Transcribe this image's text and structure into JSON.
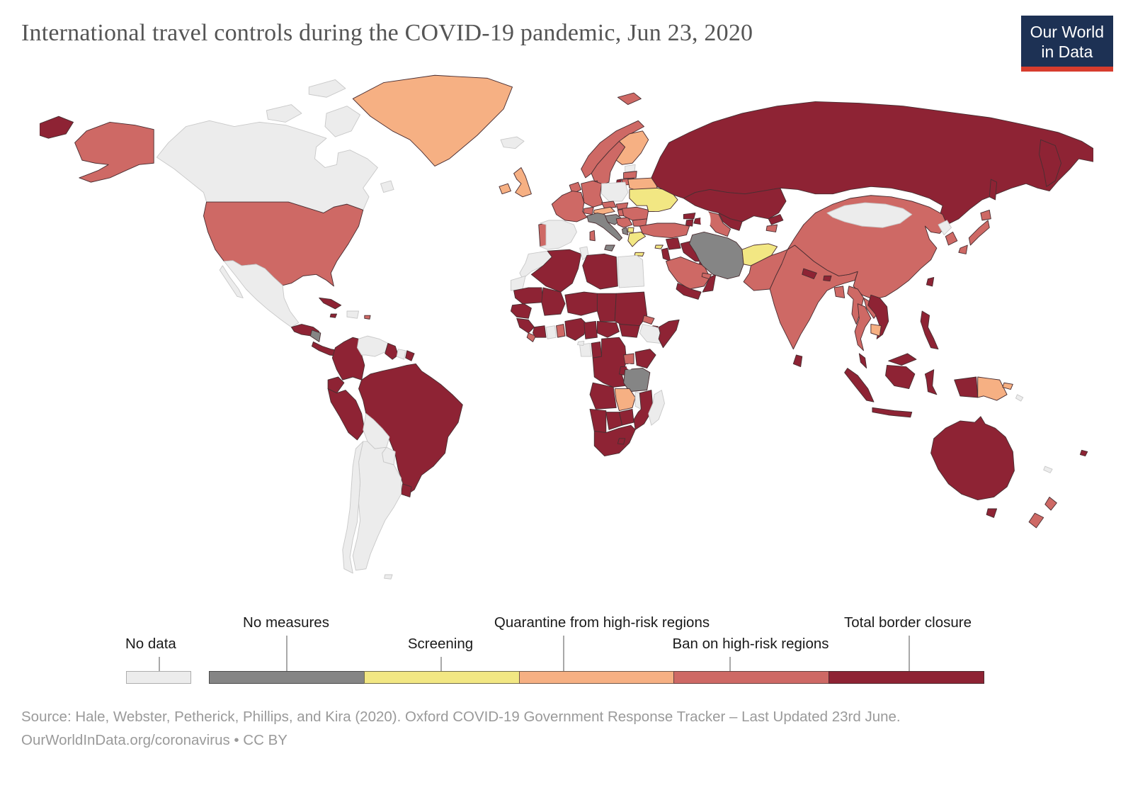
{
  "header": {
    "title": "International travel controls during the COVID-19 pandemic, Jun 23, 2020"
  },
  "logo": {
    "line1": "Our World",
    "line2": "in Data"
  },
  "colors": {
    "title_color": "#555555",
    "label_text": "#1a1a1a",
    "source_text": "#9a9a9a",
    "logo_bg": "#1d3154",
    "logo_stripe": "#d73c2d",
    "map_stroke": "#4a2e32",
    "map_stroke_nodata": "#c9c9c9",
    "water": "#ffffff"
  },
  "source": {
    "line1": "Source: Hale, Webster, Petherick, Phillips, and Kira (2020). Oxford COVID-19 Government Response Tracker – Last Updated 23rd June.",
    "link": "OurWorldInData.org/coronavirus",
    "suffix": " • CC BY"
  },
  "chart_data": {
    "type": "choropleth_map",
    "title": "International travel controls during the COVID-19 pandemic",
    "date": "Jun 23, 2020",
    "legend_position": "bottom",
    "categories": [
      {
        "label": "No data",
        "color": "#ececec"
      },
      {
        "label": "No measures",
        "color": "#858585"
      },
      {
        "label": "Screening",
        "color": "#f2e783"
      },
      {
        "label": "Quarantine from high-risk regions",
        "color": "#f6b083"
      },
      {
        "label": "Ban on high-risk regions",
        "color": "#ce6965"
      },
      {
        "label": "Total border closure",
        "color": "#8e2334"
      }
    ],
    "countries": {
      "Canada": "No data",
      "Mexico": "No data",
      "Iceland": "No data",
      "Venezuela": "No data",
      "Suriname": "No data",
      "Bolivia": "No data",
      "Paraguay": "No data",
      "Argentina": "No data",
      "Chile": "No data",
      "Falkland Islands": "No data",
      "Hispaniola": "No data",
      "Spain": "No data",
      "Poland": "No data",
      "Estonia": "No data",
      "Morocco": "No data",
      "Western Sahara": "No data",
      "Tunisia": "No data",
      "Egypt": "No data",
      "Ethiopia": "No data",
      "Ghana": "No data",
      "Gabon": "No data",
      "Equatorial Guinea": "No data",
      "Madagascar": "No data",
      "Malawi": "No data",
      "Mongolia": "No data",
      "North Korea": "No data",
      "Solomon Islands": "No data",
      "New Caledonia": "No data",
      "Italy": "No measures",
      "Croatia": "No measures",
      "Albania": "No measures",
      "Iran": "No measures",
      "Tanzania": "No measures",
      "Nicaragua": "No measures",
      "Ukraine": "Screening",
      "Greece": "Screening",
      "Afghanistan": "Screening",
      "North Macedonia": "Screening",
      "Cyprus": "Screening",
      "Greenland": "Quarantine from high-risk regions",
      "United Kingdom": "Quarantine from high-risk regions",
      "Ireland": "Quarantine from high-risk regions",
      "Finland": "Quarantine from high-risk regions",
      "Austria": "Quarantine from high-risk regions",
      "Belarus": "Quarantine from high-risk regions",
      "Zambia": "Quarantine from high-risk regions",
      "Cambodia": "Quarantine from high-risk regions",
      "Papua New Guinea": "Quarantine from high-risk regions",
      "United States": "Ban on high-risk regions",
      "Puerto Rico": "Ban on high-risk regions",
      "Norway": "Ban on high-risk regions",
      "Sweden": "Ban on high-risk regions",
      "Denmark": "Ban on high-risk regions",
      "Germany": "Ban on high-risk regions",
      "Netherlands": "Ban on high-risk regions",
      "France": "Ban on high-risk regions",
      "Portugal": "Ban on high-risk regions",
      "Czechia": "Ban on high-risk regions",
      "Slovakia": "Ban on high-risk regions",
      "Switzerland": "Ban on high-risk regions",
      "Hungary": "Ban on high-risk regions",
      "Serbia": "Ban on high-risk regions",
      "Bulgaria": "Ban on high-risk regions",
      "Romania": "Ban on high-risk regions",
      "Latvia": "Ban on high-risk regions",
      "Lithuania": "Ban on high-risk regions",
      "Turkey": "Ban on high-risk regions",
      "Saudi Arabia": "Ban on high-risk regions",
      "United Arab Emirates": "Ban on high-risk regions",
      "Turkmenistan": "Ban on high-risk regions",
      "Tajikistan": "Ban on high-risk regions",
      "Pakistan": "Ban on high-risk regions",
      "India": "Ban on high-risk regions",
      "Bangladesh": "Ban on high-risk regions",
      "China": "Ban on high-risk regions",
      "South Korea": "Ban on high-risk regions",
      "Japan": "Ban on high-risk regions",
      "Myanmar": "Ban on high-risk regions",
      "Thailand": "Ban on high-risk regions",
      "Laos": "Ban on high-risk regions",
      "New Zealand": "Ban on high-risk regions",
      "Uganda": "Ban on high-risk regions",
      "Liberia": "Ban on high-risk regions",
      "Togo": "Ban on high-risk regions",
      "Eritrea": "Ban on high-risk regions",
      "Russia": "Total border closure",
      "Kazakhstan": "Total border closure",
      "Uzbekistan": "Total border closure",
      "Kyrgyzstan": "Total border closure",
      "Georgia": "Total border closure",
      "Azerbaijan": "Total border closure",
      "Armenia": "Total border closure",
      "Moldova": "Total border closure",
      "Iraq": "Total border closure",
      "Syria": "Total border closure",
      "Israel": "Total border closure",
      "Kuwait": "Total border closure",
      "Oman": "Total border closure",
      "Yemen": "Total border closure",
      "Algeria": "Total border closure",
      "Libya": "Total border closure",
      "Mauritania": "Total border closure",
      "Mali": "Total border closure",
      "Niger": "Total border closure",
      "Chad": "Total border closure",
      "Sudan": "Total border closure",
      "South Sudan": "Total border closure",
      "Djibouti": "Total border closure",
      "Somalia": "Total border closure",
      "Senegal": "Total border closure",
      "Guinea": "Total border closure",
      "Cote d'Ivoire": "Total border closure",
      "Nigeria": "Total border closure",
      "Cameroon": "Total border closure",
      "Central African Republic": "Total border closure",
      "Congo": "Total border closure",
      "DR Congo": "Total border closure",
      "Kenya": "Total border closure",
      "Rwanda": "Total border closure",
      "Angola": "Total border closure",
      "Mozambique": "Total border closure",
      "Zimbabwe": "Total border closure",
      "Botswana": "Total border closure",
      "Namibia": "Total border closure",
      "South Africa": "Total border closure",
      "Lesotho": "Total border closure",
      "Guatemala": "Total border closure",
      "Costa Rica": "Total border closure",
      "Cuba": "Total border closure",
      "Jamaica": "Total border closure",
      "Trinidad and Tobago": "Total border closure",
      "Colombia": "Total border closure",
      "Ecuador": "Total border closure",
      "Peru": "Total border closure",
      "Brazil": "Total border closure",
      "Uruguay": "Total border closure",
      "Guyana": "Total border closure",
      "French Guiana": "Total border closure",
      "Nepal": "Total border closure",
      "Bhutan": "Total border closure",
      "Sri Lanka": "Total border closure",
      "Vietnam": "Total border closure",
      "Taiwan": "Total border closure",
      "Philippines": "Total border closure",
      "Malaysia": "Total border closure",
      "Indonesia": "Total border closure",
      "Australia": "Total border closure",
      "Fiji": "Total border closure"
    }
  }
}
